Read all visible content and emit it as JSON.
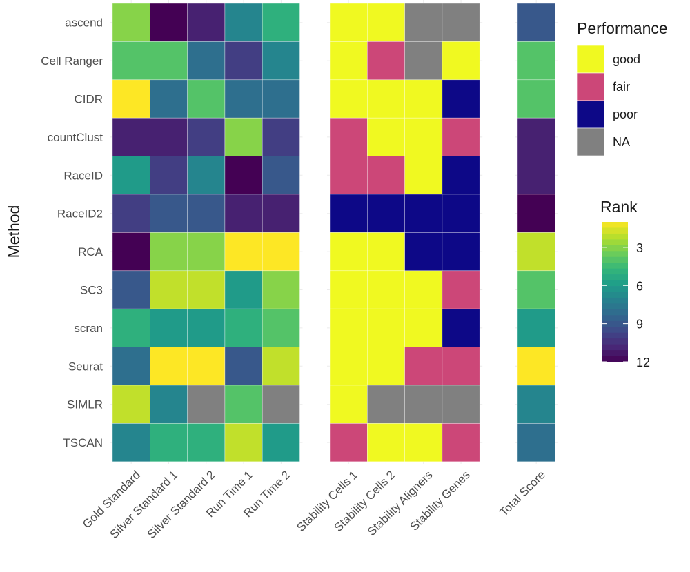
{
  "chart_data": {
    "type": "heatmap",
    "ylabel": "Method",
    "methods": [
      "ascend",
      "Cell Ranger",
      "CIDR",
      "countClust",
      "RaceID",
      "RaceID2",
      "RCA",
      "SC3",
      "scran",
      "Seurat",
      "SIMLR",
      "TSCAN"
    ],
    "panels": [
      {
        "name": "rank-metrics",
        "scale": "rank",
        "columns": [
          "Gold Standard",
          "Silver Standard 1",
          "Silver Standard 2",
          "Run Time 1",
          "Run Time 2"
        ],
        "values": [
          [
            3,
            12,
            11,
            7,
            5
          ],
          [
            4,
            4,
            8,
            10,
            7
          ],
          [
            1,
            8,
            4,
            8,
            8
          ],
          [
            11,
            11,
            10,
            3,
            10
          ],
          [
            6,
            10,
            7,
            12,
            9
          ],
          [
            10,
            9,
            9,
            11,
            11
          ],
          [
            12,
            3,
            3,
            1,
            1
          ],
          [
            9,
            2,
            2,
            6,
            3
          ],
          [
            5,
            6,
            6,
            5,
            4
          ],
          [
            8,
            1,
            1,
            9,
            2
          ],
          [
            2,
            7,
            null,
            4,
            null
          ],
          [
            7,
            5,
            5,
            2,
            6
          ]
        ]
      },
      {
        "name": "stability",
        "scale": "performance",
        "columns": [
          "Stability Cells 1",
          "Stability Cells 2",
          "Stability Aligners",
          "Stability Genes"
        ],
        "values": [
          [
            "good",
            "good",
            "NA",
            "NA"
          ],
          [
            "good",
            "fair",
            "NA",
            "good"
          ],
          [
            "good",
            "good",
            "good",
            "poor"
          ],
          [
            "fair",
            "good",
            "good",
            "fair"
          ],
          [
            "fair",
            "fair",
            "good",
            "poor"
          ],
          [
            "poor",
            "poor",
            "poor",
            "poor"
          ],
          [
            "good",
            "good",
            "poor",
            "poor"
          ],
          [
            "good",
            "good",
            "good",
            "fair"
          ],
          [
            "good",
            "good",
            "good",
            "poor"
          ],
          [
            "good",
            "good",
            "fair",
            "fair"
          ],
          [
            "good",
            "NA",
            "NA",
            "NA"
          ],
          [
            "fair",
            "good",
            "good",
            "fair"
          ]
        ]
      },
      {
        "name": "total",
        "scale": "rank",
        "columns": [
          "Total Score"
        ],
        "values": [
          [
            9
          ],
          [
            4
          ],
          [
            4
          ],
          [
            11
          ],
          [
            11
          ],
          [
            12
          ],
          [
            2
          ],
          [
            4
          ],
          [
            6
          ],
          [
            1
          ],
          [
            7
          ],
          [
            8
          ]
        ]
      }
    ],
    "legends": {
      "performance": {
        "title": "Performance",
        "items": [
          {
            "label": "good",
            "color": "#f0f921"
          },
          {
            "label": "fair",
            "color": "#cc4778"
          },
          {
            "label": "poor",
            "color": "#0d0887"
          },
          {
            "label": "NA",
            "color": "#808080"
          }
        ]
      },
      "rank": {
        "title": "Rank",
        "range": [
          1,
          12
        ],
        "ticks": [
          3,
          6,
          9,
          12
        ],
        "palette": "viridis-reversed"
      }
    },
    "na_color": "#808080",
    "grid": true
  }
}
